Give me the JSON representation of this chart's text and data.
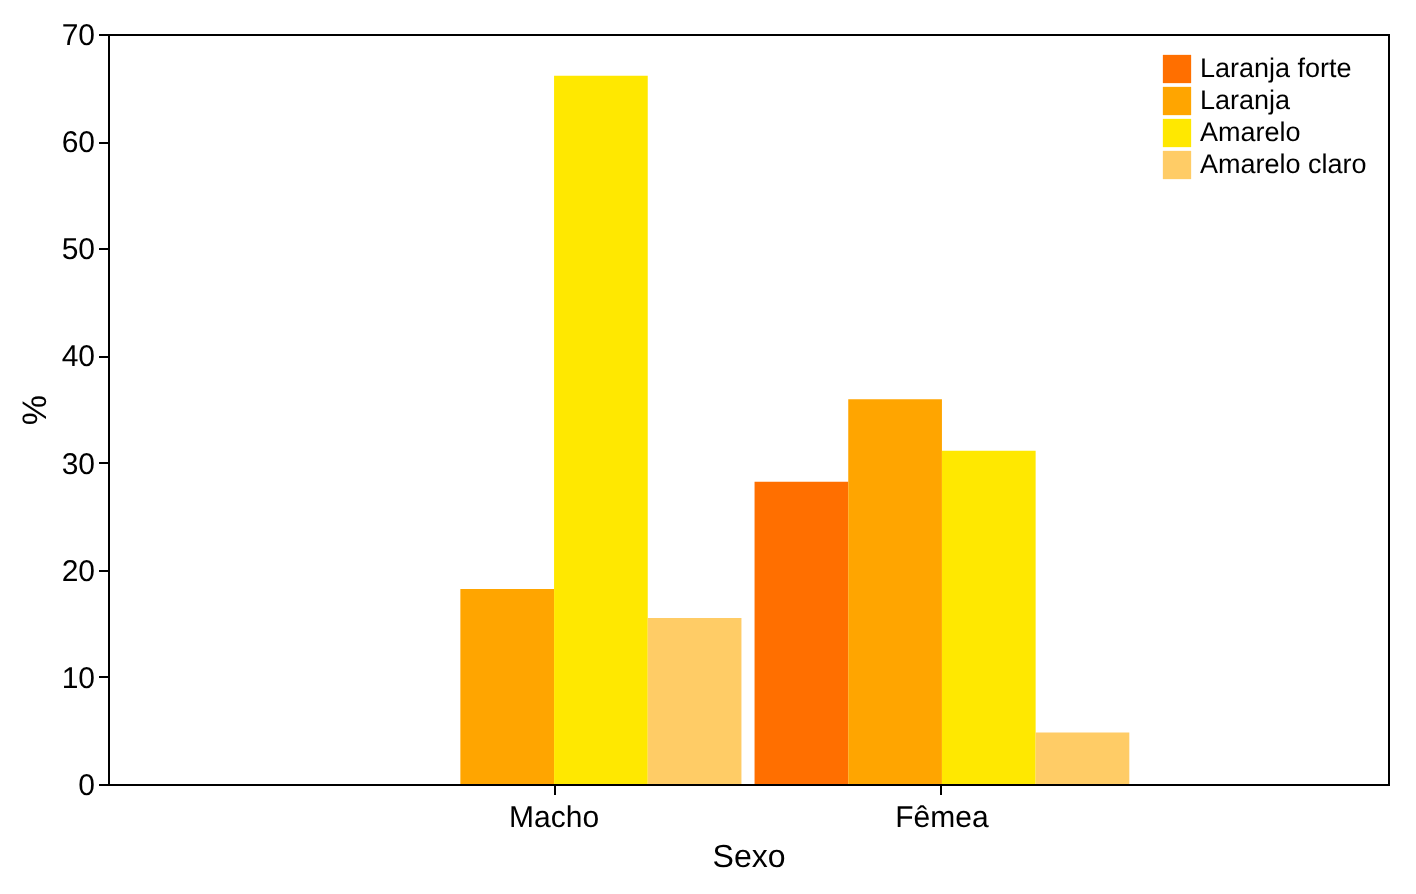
{
  "chart_data": {
    "type": "bar",
    "xlabel": "Sexo",
    "ylabel": "%",
    "categories": [
      "Macho",
      "Fêmea"
    ],
    "series": [
      {
        "name": "Laranja forte",
        "color": "#ff6f00",
        "values": [
          0,
          28.2
        ]
      },
      {
        "name": "Laranja",
        "color": "#ffa500",
        "values": [
          18.2,
          35.9
        ]
      },
      {
        "name": "Amarelo",
        "color": "#ffe800",
        "values": [
          66.1,
          31.1
        ]
      },
      {
        "name": "Amarelo claro",
        "color": "#ffcc66",
        "values": [
          15.5,
          4.8
        ]
      }
    ],
    "ylim": [
      0,
      70
    ],
    "yticks": [
      0,
      10,
      20,
      30,
      40,
      50,
      60,
      70
    ],
    "grid": false,
    "legend": "top right"
  }
}
